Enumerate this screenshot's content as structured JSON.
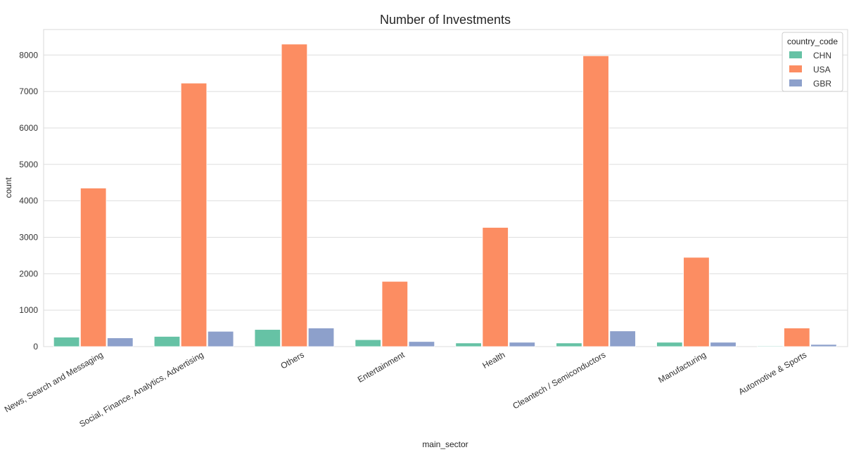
{
  "chart_data": {
    "type": "bar",
    "title": "Number of Investments",
    "xlabel": "main_sector",
    "ylabel": "count",
    "categories": [
      "News, Search and Messaging",
      "Social, Finance, Analytics, Advertising",
      "Others",
      "Entertainment",
      "Health",
      "Cleantech / Semiconductors",
      "Manufacturing",
      "Automotive & Sports"
    ],
    "series": [
      {
        "name": "CHN",
        "color": "#66c2a5",
        "values": [
          260,
          280,
          470,
          190,
          100,
          100,
          120,
          20
        ]
      },
      {
        "name": "USA",
        "color": "#fc8d62",
        "values": [
          4350,
          7230,
          8300,
          1790,
          3270,
          7980,
          2450,
          510
        ]
      },
      {
        "name": "GBR",
        "color": "#8da0cb",
        "values": [
          240,
          420,
          510,
          140,
          120,
          430,
          120,
          60
        ]
      }
    ],
    "ylim": [
      0,
      8700
    ],
    "yticks": [
      0,
      1000,
      2000,
      3000,
      4000,
      5000,
      6000,
      7000,
      8000
    ],
    "grid": true,
    "legend": {
      "title": "country_code",
      "position": "top-right"
    }
  }
}
